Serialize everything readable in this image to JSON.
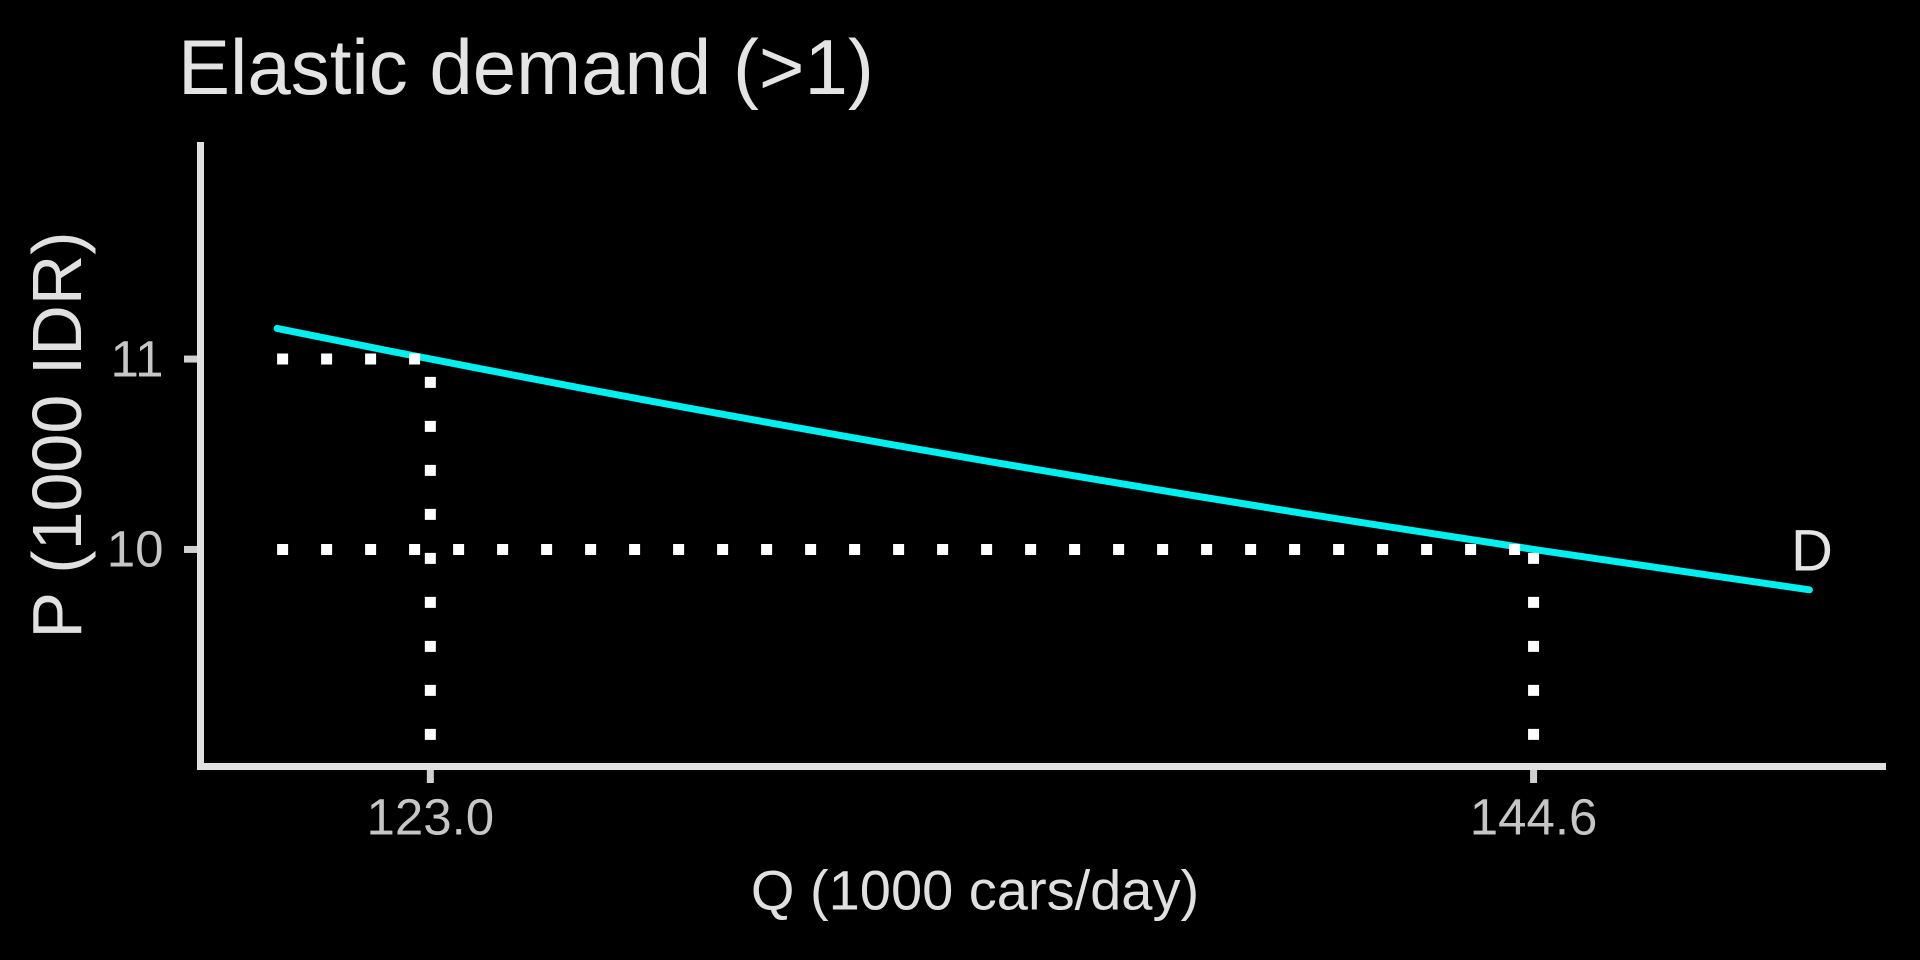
{
  "colors": {
    "background": "#000000",
    "title_text": "#E4E4E4",
    "axis_title_text": "#E0E0E0",
    "tick_text": "#C6C6C6",
    "axis_line": "#E0E0E0",
    "tick_mark": "#D0D0D0",
    "guide_dots": "#FFFFFF",
    "curve": "#00F0F0"
  },
  "chart_data": {
    "type": "line",
    "title": "Elastic demand (>1)",
    "xlabel": "Q (1000 cars/day)",
    "ylabel": "P (1000 IDR)",
    "xlim": [
      118.5,
      151.5
    ],
    "ylim": [
      8.86,
      12.14
    ],
    "grid": false,
    "legend": "none",
    "x_ticks": [
      {
        "value": 123.0,
        "label": "123.0"
      },
      {
        "value": 144.6,
        "label": "144.6"
      }
    ],
    "y_ticks": [
      {
        "value": 10,
        "label": "10"
      },
      {
        "value": 11,
        "label": "11"
      }
    ],
    "series": [
      {
        "name": "D",
        "color": "#00F0F0",
        "points": [
          [
            120.0,
            11.161
          ],
          [
            122.0,
            11.053
          ],
          [
            124.0,
            10.948
          ],
          [
            126.0,
            10.845
          ],
          [
            128.0,
            10.745
          ],
          [
            130.0,
            10.648
          ],
          [
            132.0,
            10.552
          ],
          [
            134.0,
            10.459
          ],
          [
            136.0,
            10.369
          ],
          [
            138.0,
            10.28
          ],
          [
            140.0,
            10.193
          ],
          [
            142.0,
            10.109
          ],
          [
            144.0,
            10.026
          ],
          [
            144.6,
            10.0
          ],
          [
            146.0,
            9.945
          ],
          [
            148.0,
            9.866
          ],
          [
            150.0,
            9.788
          ]
        ]
      }
    ],
    "series_label": {
      "text": "D",
      "q": 150.05,
      "p": 9.99
    },
    "highlighted_points": [
      {
        "q": 123.0,
        "p": 11
      },
      {
        "q": 144.6,
        "p": 10
      }
    ],
    "guides": [
      {
        "orientation": "horizontal",
        "p": 11,
        "q_from": 120.0,
        "q_to": 123.0
      },
      {
        "orientation": "vertical",
        "q": 123.0,
        "p_from": 9.0,
        "p_to": 11.0
      },
      {
        "orientation": "horizontal",
        "p": 10,
        "q_from": 120.0,
        "q_to": 144.6
      },
      {
        "orientation": "vertical",
        "q": 144.6,
        "p_from": 9.0,
        "p_to": 10.0
      }
    ]
  }
}
